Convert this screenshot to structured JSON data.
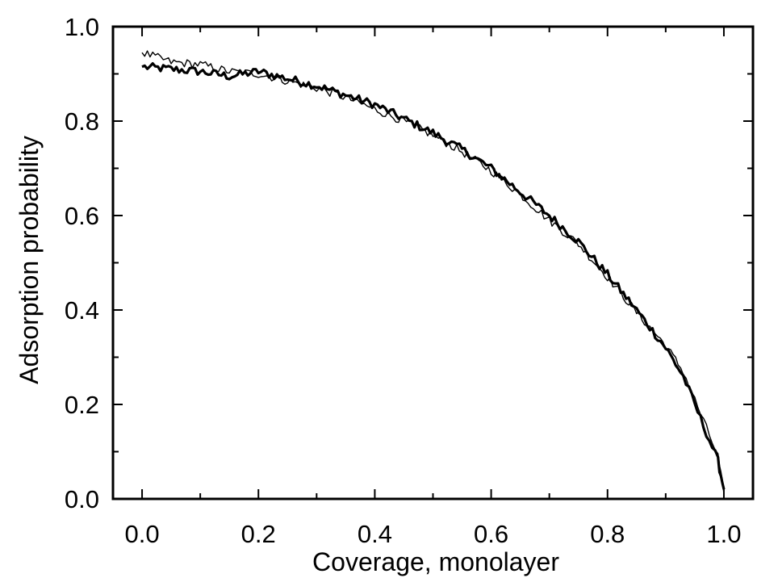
{
  "chart_data": {
    "type": "line",
    "title": "",
    "xlabel": "Coverage, monolayer",
    "ylabel": "Adsorption probability",
    "xlim": [
      -0.05,
      1.05
    ],
    "ylim": [
      0.0,
      1.0
    ],
    "x_ticks": [
      0.0,
      0.2,
      0.4,
      0.6,
      0.8,
      1.0
    ],
    "y_ticks": [
      0.0,
      0.2,
      0.4,
      0.6,
      0.8,
      1.0
    ],
    "x_tick_labels": [
      "0.0",
      "0.2",
      "0.4",
      "0.6",
      "0.8",
      "1.0"
    ],
    "y_tick_labels": [
      "0.0",
      "0.2",
      "0.4",
      "0.6",
      "0.8",
      "1.0"
    ],
    "grid": false,
    "legend": "none",
    "colors": {
      "series": "#000000",
      "axis": "#000000",
      "background": "#ffffff"
    },
    "series": [
      {
        "style": "thick",
        "x": [
          0.0,
          0.05,
          0.1,
          0.15,
          0.2,
          0.25,
          0.3,
          0.35,
          0.4,
          0.45,
          0.5,
          0.55,
          0.6,
          0.65,
          0.7,
          0.75,
          0.8,
          0.85,
          0.9,
          0.93,
          0.95,
          0.97,
          0.99,
          1.0
        ],
        "y": [
          0.915,
          0.91,
          0.905,
          0.895,
          0.905,
          0.89,
          0.875,
          0.855,
          0.835,
          0.805,
          0.775,
          0.74,
          0.7,
          0.65,
          0.6,
          0.545,
          0.475,
          0.4,
          0.32,
          0.26,
          0.2,
          0.14,
          0.08,
          0.02
        ]
      },
      {
        "style": "thin",
        "x": [
          0.0,
          0.05,
          0.1,
          0.15,
          0.2,
          0.25,
          0.3,
          0.35,
          0.4,
          0.45,
          0.5,
          0.55,
          0.6,
          0.65,
          0.7,
          0.75,
          0.8,
          0.85,
          0.9,
          0.93,
          0.95,
          0.97,
          0.99,
          1.0
        ],
        "y": [
          0.945,
          0.925,
          0.92,
          0.905,
          0.9,
          0.885,
          0.87,
          0.85,
          0.825,
          0.8,
          0.77,
          0.735,
          0.695,
          0.645,
          0.59,
          0.54,
          0.47,
          0.395,
          0.325,
          0.27,
          0.21,
          0.15,
          0.09,
          0.01
        ]
      }
    ]
  }
}
